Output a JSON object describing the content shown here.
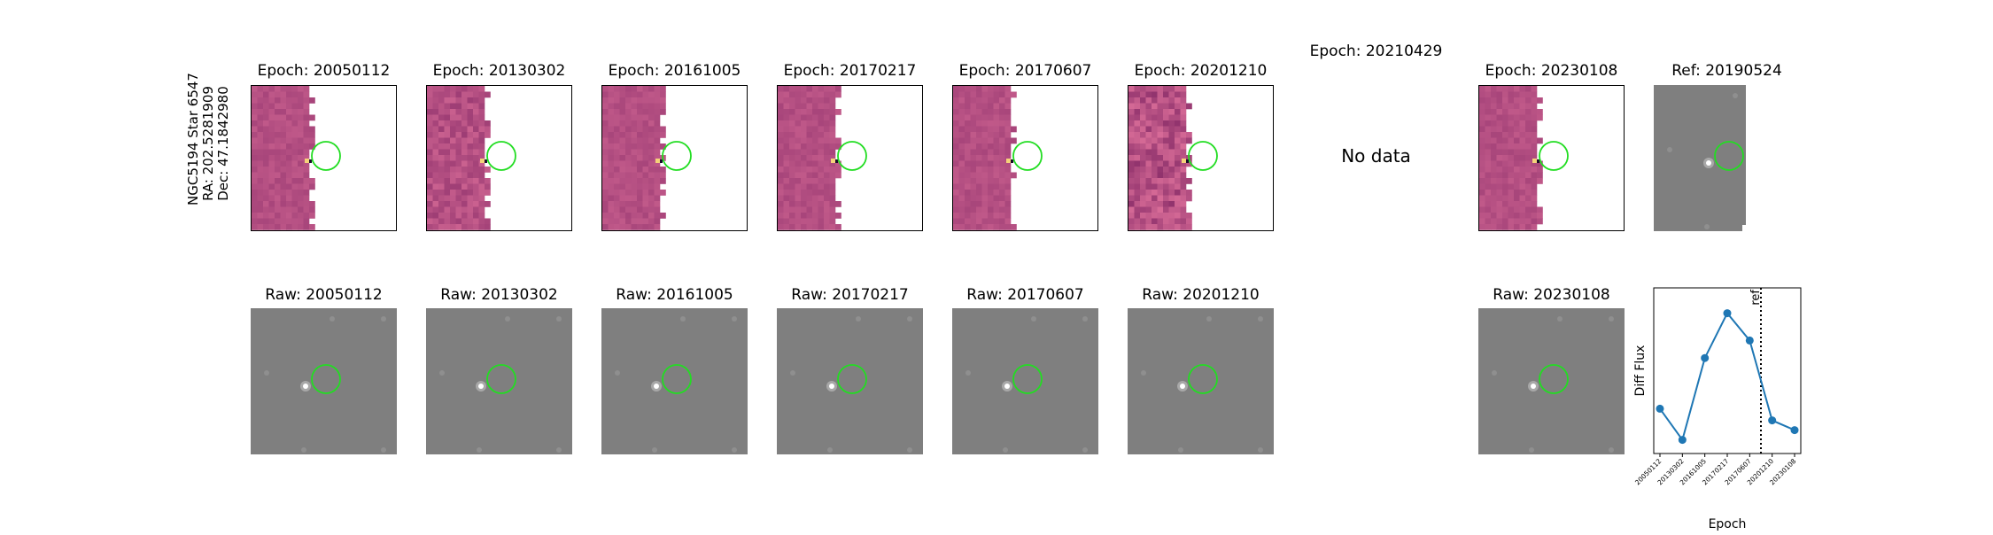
{
  "star_label": {
    "line1": "NGC5194 Star 6547",
    "line2": "RA: 202.5281909",
    "line3": "Dec: 47.1842980"
  },
  "diff_panels": [
    {
      "title": "Epoch: 20050112",
      "has_data": true
    },
    {
      "title": "Epoch: 20130302",
      "has_data": true
    },
    {
      "title": "Epoch: 20161005",
      "has_data": true
    },
    {
      "title": "Epoch: 20170217",
      "has_data": true
    },
    {
      "title": "Epoch: 20170607",
      "has_data": true
    },
    {
      "title": "Epoch: 20201210",
      "has_data": true
    },
    {
      "title": "Epoch: 20210429",
      "has_data": false,
      "message": "No data"
    },
    {
      "title": "Epoch: 20230108",
      "has_data": true
    }
  ],
  "ref_panel": {
    "title": "Ref: 20190524"
  },
  "raw_panels": [
    {
      "title": "Raw: 20050112"
    },
    {
      "title": "Raw: 20130302"
    },
    {
      "title": "Raw: 20161005"
    },
    {
      "title": "Raw: 20170217"
    },
    {
      "title": "Raw: 20170607"
    },
    {
      "title": "Raw: 20201210"
    },
    null,
    {
      "title": "Raw: 20230108"
    }
  ],
  "colors": {
    "diff_base": "#b44f82",
    "raw_base": "#7f7f7f",
    "circle": "#22dd22",
    "line": "#1f77b4"
  },
  "chart_data": {
    "type": "line",
    "categories": [
      "20050112",
      "20130302",
      "20161005",
      "20170217",
      "20170607",
      "20201210",
      "20230108"
    ],
    "values": [
      0.28,
      0.12,
      0.54,
      0.77,
      0.63,
      0.22,
      0.17
    ],
    "xlabel": "Epoch",
    "ylabel": "Diff Flux",
    "ylim": [
      0.05,
      0.9
    ],
    "ref_marker": {
      "position_between": [
        "20170607",
        "20201210"
      ],
      "fraction": 0.5,
      "label": "ref",
      "style": "dotted"
    },
    "grid": false
  }
}
